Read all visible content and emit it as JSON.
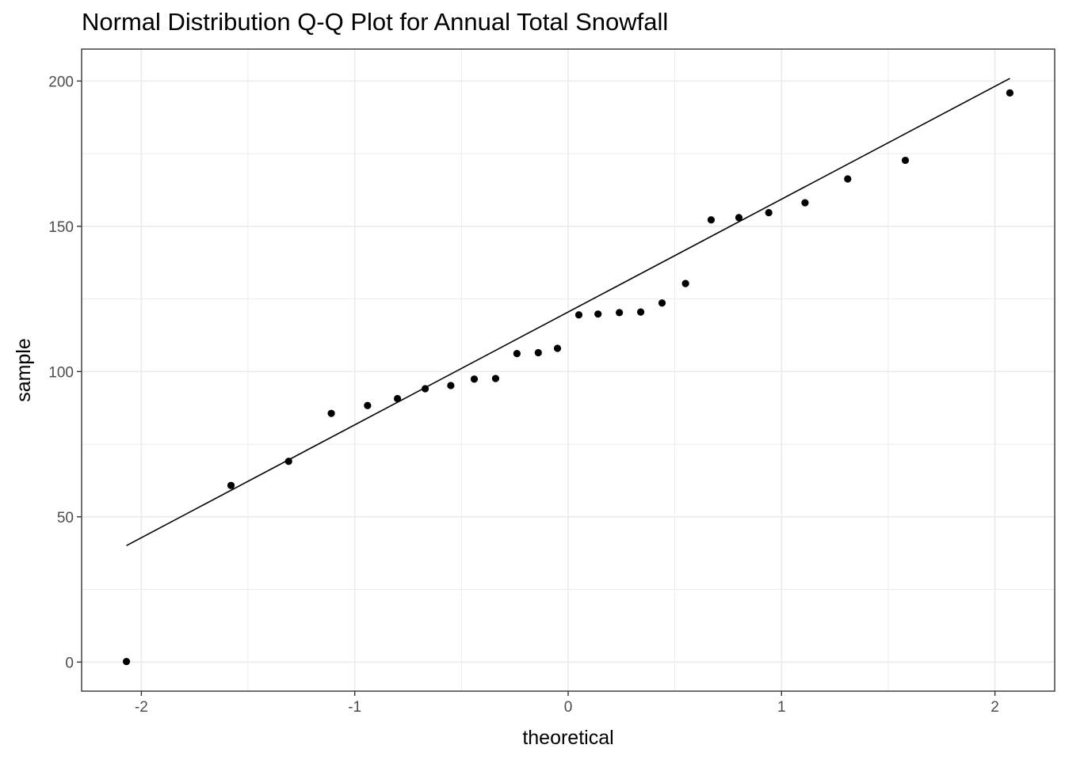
{
  "chart_data": {
    "type": "scatter",
    "title": "Normal Distribution Q-Q Plot for Annual Total Snowfall",
    "xlabel": "theoretical",
    "ylabel": "sample",
    "xlim": [
      -2.28,
      2.28
    ],
    "ylim": [
      -10,
      211
    ],
    "x_ticks": [
      -2,
      -1,
      0,
      1,
      2
    ],
    "x_tick_labels": [
      "-2",
      "-1",
      "0",
      "1",
      "2"
    ],
    "y_ticks": [
      0,
      50,
      100,
      150,
      200
    ],
    "y_tick_labels": [
      "0",
      "50",
      "100",
      "150",
      "200"
    ],
    "grid": true,
    "points": [
      {
        "x": -2.07,
        "y": 0.2
      },
      {
        "x": -1.58,
        "y": 60.8
      },
      {
        "x": -1.31,
        "y": 69.1
      },
      {
        "x": -1.11,
        "y": 85.6
      },
      {
        "x": -0.94,
        "y": 88.3
      },
      {
        "x": -0.8,
        "y": 90.7
      },
      {
        "x": -0.67,
        "y": 94.1
      },
      {
        "x": -0.55,
        "y": 95.2
      },
      {
        "x": -0.44,
        "y": 97.4
      },
      {
        "x": -0.34,
        "y": 97.6
      },
      {
        "x": -0.24,
        "y": 106.2
      },
      {
        "x": -0.14,
        "y": 106.5
      },
      {
        "x": -0.05,
        "y": 108.0
      },
      {
        "x": 0.05,
        "y": 119.5
      },
      {
        "x": 0.14,
        "y": 119.8
      },
      {
        "x": 0.24,
        "y": 120.3
      },
      {
        "x": 0.34,
        "y": 120.5
      },
      {
        "x": 0.44,
        "y": 123.6
      },
      {
        "x": 0.55,
        "y": 130.3
      },
      {
        "x": 0.67,
        "y": 152.2
      },
      {
        "x": 0.8,
        "y": 153.0
      },
      {
        "x": 0.94,
        "y": 154.7
      },
      {
        "x": 1.11,
        "y": 158.1
      },
      {
        "x": 1.31,
        "y": 166.3
      },
      {
        "x": 1.58,
        "y": 172.7
      },
      {
        "x": 2.07,
        "y": 195.9
      }
    ],
    "reference_line": {
      "x": [
        -2.07,
        2.07
      ],
      "y": [
        40.1,
        200.9
      ]
    },
    "colors": {
      "points": "#000000",
      "line": "#000000",
      "grid": "#ebebeb",
      "panel_border": "#333333"
    }
  }
}
